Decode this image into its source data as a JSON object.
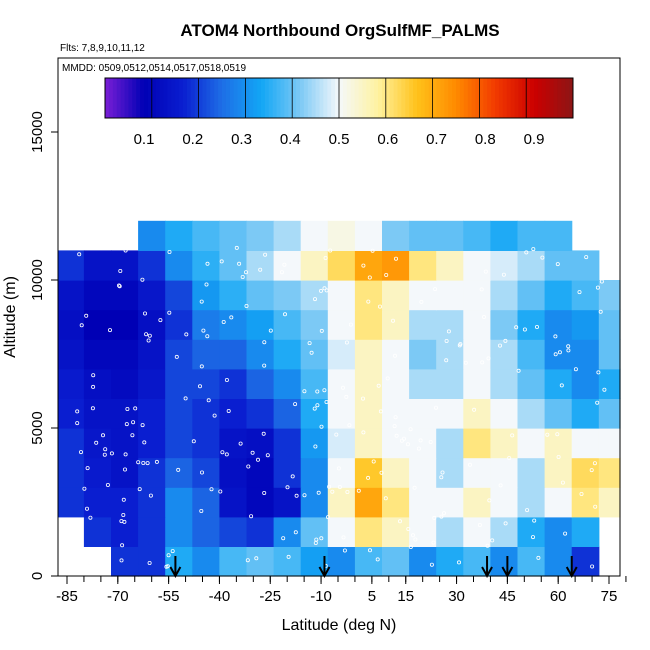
{
  "chart_data": {
    "type": "heatmap",
    "title": "ATOM4 Northbound OrgSulfMF_PALMS",
    "subtitle_flights": "Flts: 7,8,9,10,11,12",
    "subtitle_dates": "MMDD: 0509,0512,0514,0517,0518,0519",
    "xlabel": "Latitude (deg N)",
    "ylabel": "Altitude (m)",
    "xlim": [
      -88,
      85
    ],
    "ylim": [
      0,
      17500
    ],
    "x_ticks": [
      -85,
      -70,
      -55,
      -40,
      -25,
      -10,
      5,
      15,
      30,
      45,
      60,
      75
    ],
    "x_tick_labels": [
      "-85",
      "-70",
      "-55",
      "-40",
      "-25",
      "-10",
      "5",
      "15",
      "30",
      "45",
      "60",
      "75"
    ],
    "y_ticks": [
      0,
      5000,
      10000,
      15000
    ],
    "y_tick_labels": [
      "0",
      "5000",
      "10000",
      "15000"
    ],
    "colorbar": {
      "range": [
        0.02,
        0.98
      ],
      "ticks": [
        0.1,
        0.2,
        0.3,
        0.4,
        0.5,
        0.6,
        0.7,
        0.8,
        0.9
      ],
      "tick_labels": [
        "0.1",
        "0.2",
        "0.3",
        "0.4",
        "0.5",
        "0.6",
        "0.7",
        "0.8",
        "0.9"
      ],
      "stops": [
        {
          "v": 0.02,
          "c": "#7a1fd6"
        },
        {
          "v": 0.1,
          "c": "#0000b5"
        },
        {
          "v": 0.18,
          "c": "#0a1ed0"
        },
        {
          "v": 0.26,
          "c": "#1e6ee6"
        },
        {
          "v": 0.34,
          "c": "#12a6f5"
        },
        {
          "v": 0.42,
          "c": "#7cc9f5"
        },
        {
          "v": 0.5,
          "c": "#f4f8fb"
        },
        {
          "v": 0.58,
          "c": "#fff2a0"
        },
        {
          "v": 0.66,
          "c": "#ffc21a"
        },
        {
          "v": 0.74,
          "c": "#ff8a00"
        },
        {
          "v": 0.82,
          "c": "#f23b00"
        },
        {
          "v": 0.9,
          "c": "#cc0000"
        },
        {
          "v": 0.98,
          "c": "#8c1515"
        }
      ]
    },
    "profile_arrows_latitude": [
      -53,
      -9,
      39,
      45,
      64
    ],
    "cells": {
      "x_edges": [
        -88,
        -80,
        -72,
        -64,
        -56,
        -48,
        -40,
        -32,
        -24,
        -16,
        -8,
        0,
        8,
        16,
        24,
        32,
        40,
        48,
        56,
        64,
        72,
        80
      ],
      "y_edges": [
        0,
        1000,
        2000,
        3000,
        4000,
        5000,
        6000,
        7000,
        8000,
        9000,
        10000,
        11000,
        12000
      ],
      "values": [
        [
          null,
          null,
          0.2,
          0.2,
          0.35,
          0.3,
          0.38,
          0.4,
          0.38,
          0.33,
          0.3,
          0.38,
          0.4,
          0.3,
          0.35,
          0.38,
          0.3,
          0.38,
          0.3,
          0.2,
          null
        ],
        [
          null,
          0.2,
          0.18,
          0.2,
          0.3,
          0.25,
          0.22,
          0.2,
          0.3,
          0.4,
          0.5,
          0.6,
          0.55,
          0.5,
          0.45,
          0.5,
          0.45,
          0.35,
          0.3,
          0.35,
          null
        ],
        [
          0.2,
          0.18,
          0.18,
          0.2,
          0.3,
          0.25,
          0.15,
          0.12,
          0.15,
          0.3,
          0.55,
          0.7,
          0.6,
          0.5,
          0.5,
          0.55,
          0.5,
          0.45,
          0.5,
          0.6,
          0.55
        ],
        [
          0.2,
          0.17,
          0.15,
          0.2,
          0.25,
          0.22,
          0.14,
          0.12,
          0.2,
          0.3,
          0.5,
          0.65,
          0.55,
          0.5,
          0.45,
          0.5,
          0.5,
          0.45,
          0.55,
          0.62,
          0.6
        ],
        [
          0.2,
          0.16,
          0.15,
          0.18,
          0.22,
          0.2,
          0.15,
          0.14,
          0.2,
          0.32,
          0.48,
          0.55,
          0.5,
          0.5,
          0.45,
          0.6,
          0.55,
          0.5,
          0.55,
          0.5,
          0.5
        ],
        [
          0.18,
          0.15,
          0.15,
          0.18,
          0.22,
          0.2,
          0.18,
          0.2,
          0.25,
          0.35,
          0.5,
          0.55,
          0.5,
          0.5,
          0.5,
          0.55,
          0.5,
          0.45,
          0.4,
          0.35,
          0.4
        ],
        [
          0.17,
          0.14,
          0.13,
          0.16,
          0.22,
          0.22,
          0.2,
          0.25,
          0.3,
          0.38,
          0.5,
          0.55,
          0.5,
          0.45,
          0.45,
          0.5,
          0.45,
          0.4,
          0.35,
          0.3,
          0.35
        ],
        [
          0.15,
          0.12,
          0.12,
          0.15,
          0.22,
          0.25,
          0.25,
          0.3,
          0.35,
          0.4,
          0.48,
          0.55,
          0.5,
          0.42,
          0.45,
          0.5,
          0.45,
          0.38,
          0.3,
          0.3,
          0.4
        ],
        [
          0.14,
          0.1,
          0.1,
          0.14,
          0.2,
          0.28,
          0.3,
          0.33,
          0.38,
          0.42,
          0.5,
          0.6,
          0.55,
          0.45,
          0.45,
          0.5,
          0.42,
          0.35,
          0.3,
          0.32,
          0.4
        ],
        [
          0.15,
          0.12,
          0.12,
          0.16,
          0.22,
          0.32,
          0.36,
          0.4,
          0.42,
          0.45,
          0.5,
          0.6,
          0.55,
          0.5,
          0.5,
          0.5,
          0.45,
          0.4,
          0.35,
          0.38,
          0.42
        ],
        [
          0.2,
          0.15,
          0.15,
          0.2,
          0.3,
          0.36,
          0.4,
          0.45,
          0.5,
          0.55,
          0.62,
          0.7,
          0.72,
          0.6,
          0.55,
          0.5,
          0.48,
          0.45,
          0.4,
          0.4,
          null
        ],
        [
          null,
          null,
          null,
          0.3,
          0.35,
          0.38,
          0.4,
          0.42,
          0.45,
          0.5,
          0.52,
          0.5,
          0.42,
          0.4,
          0.4,
          0.38,
          0.35,
          0.38,
          0.38,
          null,
          null
        ]
      ]
    }
  }
}
